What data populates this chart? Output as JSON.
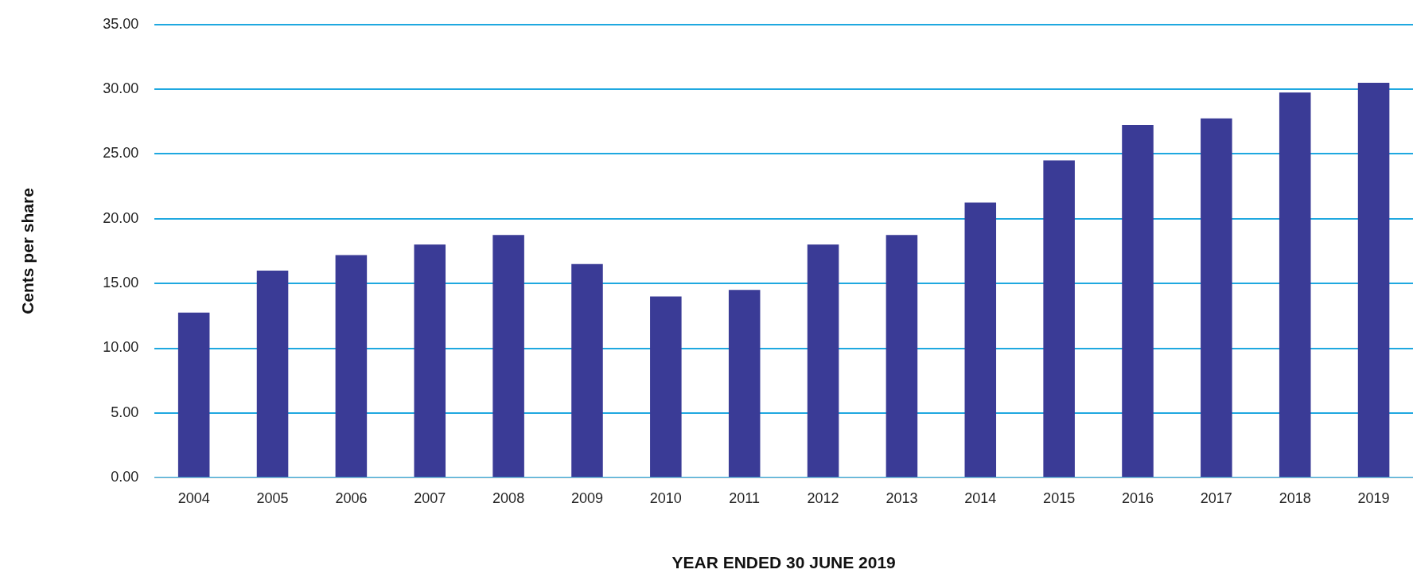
{
  "chart_data": {
    "type": "bar",
    "xlabel": "YEAR ENDED 30 JUNE 2019",
    "ylabel": "Cents per share",
    "categories": [
      "2004",
      "2005",
      "2006",
      "2007",
      "2008",
      "2009",
      "2010",
      "2011",
      "2012",
      "2013",
      "2014",
      "2015",
      "2016",
      "2017",
      "2018",
      "2019"
    ],
    "values": [
      12.75,
      16.0,
      17.2,
      18.0,
      18.75,
      16.5,
      14.0,
      14.5,
      18.0,
      18.75,
      21.25,
      24.5,
      27.25,
      27.75,
      29.75,
      30.5
    ],
    "color": "#3a3b96",
    "ylim": [
      0,
      35
    ],
    "yticks": [
      {
        "value": 0,
        "label": "0.00"
      },
      {
        "value": 5,
        "label": "5.00"
      },
      {
        "value": 10,
        "label": "10.00"
      },
      {
        "value": 15,
        "label": "15.00"
      },
      {
        "value": 20,
        "label": "20.00"
      },
      {
        "value": 25,
        "label": "25.00"
      },
      {
        "value": 30,
        "label": "30.00"
      },
      {
        "value": 35,
        "label": "35.00"
      }
    ],
    "grid": "y",
    "legend": false
  }
}
